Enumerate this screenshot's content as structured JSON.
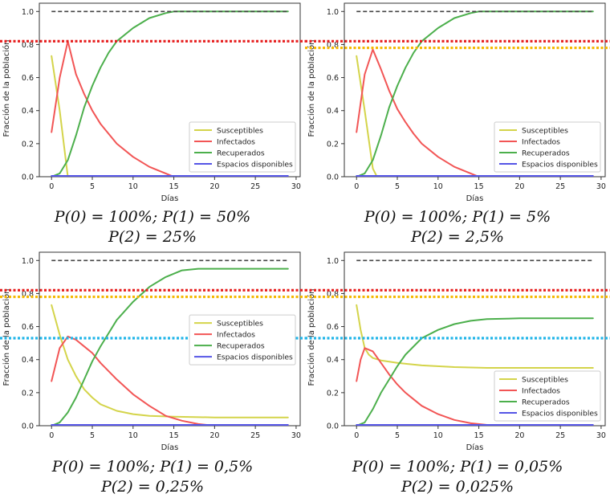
{
  "common": {
    "xlabel": "Días",
    "ylabel": "Fracción de la población",
    "xticks": [
      "0",
      "5",
      "10",
      "15",
      "20",
      "25",
      "30"
    ],
    "yticks": [
      "0.0",
      "0.2",
      "0.4",
      "0.6",
      "0.8",
      "1.0"
    ],
    "legend": [
      "Susceptibles",
      "Infectados",
      "Recuperados",
      "Espacios disponibles"
    ],
    "colors": {
      "susceptibles": "#d4d44a",
      "infectados": "#f25555",
      "recuperados": "#4caf4c",
      "espacios": "#5555e6",
      "total": "#444444",
      "red_threshold": "#e61e1e",
      "orange_threshold": "#f5b800",
      "cyan_threshold": "#1fb4e8"
    }
  },
  "panels": [
    {
      "caption_line1": "P(0) = 100%; P(1) = 50%",
      "caption_line2": "P(2) = 25%"
    },
    {
      "caption_line1": "P(0) = 100%; P(1) = 5%",
      "caption_line2": "P(2) = 2,5%"
    },
    {
      "caption_line1": "P(0) = 100%; P(1) = 0,5%",
      "caption_line2": "P(2) = 0,25%"
    },
    {
      "caption_line1": "P(0) = 100%; P(1) = 0,05%",
      "caption_line2": "P(2) = 0,025%"
    }
  ],
  "chart_data": [
    {
      "type": "line",
      "xlabel": "Días",
      "ylabel": "Fracción de la población",
      "xlim": [
        -1.5,
        30.5
      ],
      "ylim": [
        0,
        1.05
      ],
      "legend_position": "lower-right",
      "reference_lines": [
        {
          "y": 1.0,
          "color": "#444444",
          "style": "dashed"
        },
        {
          "y": 0.82,
          "color": "#e61e1e",
          "style": "dotted"
        }
      ],
      "series": [
        {
          "name": "Susceptibles",
          "x": [
            0,
            1,
            2
          ],
          "y": [
            0.73,
            0.4,
            0.0
          ]
        },
        {
          "name": "Infectados",
          "x": [
            0,
            1,
            2,
            3,
            4,
            5,
            6,
            7,
            8,
            10,
            12,
            14,
            15,
            29
          ],
          "y": [
            0.27,
            0.6,
            0.82,
            0.62,
            0.5,
            0.4,
            0.32,
            0.26,
            0.2,
            0.12,
            0.06,
            0.02,
            0.0,
            0.0
          ]
        },
        {
          "name": "Recuperados",
          "x": [
            0,
            1,
            2,
            3,
            4,
            5,
            6,
            7,
            8,
            10,
            12,
            14,
            15,
            29
          ],
          "y": [
            0.0,
            0.02,
            0.1,
            0.25,
            0.42,
            0.55,
            0.66,
            0.75,
            0.82,
            0.9,
            0.96,
            0.99,
            1.0,
            1.0
          ]
        },
        {
          "name": "Espacios disponibles",
          "x": [
            0,
            29
          ],
          "y": [
            0.005,
            0.005
          ]
        }
      ]
    },
    {
      "type": "line",
      "xlabel": "Días",
      "ylabel": "Fracción de la población",
      "xlim": [
        -1.5,
        30.5
      ],
      "ylim": [
        0,
        1.05
      ],
      "legend_position": "lower-right",
      "reference_lines": [
        {
          "y": 1.0,
          "color": "#444444",
          "style": "dashed"
        },
        {
          "y": 0.82,
          "color": "#e61e1e",
          "style": "dotted"
        },
        {
          "y": 0.78,
          "color": "#f5b800",
          "style": "dotted"
        }
      ],
      "series": [
        {
          "name": "Susceptibles",
          "x": [
            0,
            1,
            2,
            2.5
          ],
          "y": [
            0.73,
            0.4,
            0.05,
            0.0
          ]
        },
        {
          "name": "Infectados",
          "x": [
            0,
            1,
            2,
            3,
            4,
            5,
            6,
            7,
            8,
            10,
            12,
            14,
            15,
            29
          ],
          "y": [
            0.27,
            0.62,
            0.77,
            0.65,
            0.52,
            0.41,
            0.33,
            0.26,
            0.2,
            0.12,
            0.06,
            0.02,
            0.0,
            0.0
          ]
        },
        {
          "name": "Recuperados",
          "x": [
            0,
            1,
            2,
            3,
            4,
            5,
            6,
            7,
            8,
            10,
            12,
            14,
            15,
            29
          ],
          "y": [
            0.0,
            0.02,
            0.1,
            0.25,
            0.42,
            0.55,
            0.66,
            0.75,
            0.82,
            0.9,
            0.96,
            0.99,
            1.0,
            1.0
          ]
        },
        {
          "name": "Espacios disponibles",
          "x": [
            0,
            29
          ],
          "y": [
            0.005,
            0.005
          ]
        }
      ]
    },
    {
      "type": "line",
      "xlabel": "Días",
      "ylabel": "Fracción de la población",
      "xlim": [
        -1.5,
        30.5
      ],
      "ylim": [
        0,
        1.05
      ],
      "legend_position": "center-right",
      "reference_lines": [
        {
          "y": 1.0,
          "color": "#444444",
          "style": "dashed"
        },
        {
          "y": 0.82,
          "color": "#e61e1e",
          "style": "dotted"
        },
        {
          "y": 0.78,
          "color": "#f5b800",
          "style": "dotted"
        },
        {
          "y": 0.53,
          "color": "#1fb4e8",
          "style": "dotted"
        }
      ],
      "series": [
        {
          "name": "Susceptibles",
          "x": [
            0,
            1,
            2,
            3,
            4,
            5,
            6,
            8,
            10,
            12,
            15,
            20,
            25,
            29
          ],
          "y": [
            0.73,
            0.55,
            0.4,
            0.3,
            0.22,
            0.17,
            0.13,
            0.09,
            0.07,
            0.06,
            0.055,
            0.05,
            0.05,
            0.05
          ]
        },
        {
          "name": "Infectados",
          "x": [
            0,
            1,
            2,
            3,
            4,
            5,
            6,
            8,
            10,
            12,
            14,
            16,
            18,
            20,
            29
          ],
          "y": [
            0.27,
            0.47,
            0.54,
            0.52,
            0.48,
            0.44,
            0.38,
            0.28,
            0.19,
            0.12,
            0.06,
            0.03,
            0.01,
            0.0,
            0.0
          ]
        },
        {
          "name": "Recuperados",
          "x": [
            0,
            1,
            2,
            3,
            4,
            5,
            6,
            8,
            10,
            12,
            14,
            16,
            18,
            20,
            29
          ],
          "y": [
            0.0,
            0.02,
            0.08,
            0.17,
            0.28,
            0.39,
            0.48,
            0.64,
            0.75,
            0.84,
            0.9,
            0.94,
            0.95,
            0.95,
            0.95
          ]
        },
        {
          "name": "Espacios disponibles",
          "x": [
            0,
            29
          ],
          "y": [
            0.005,
            0.005
          ]
        }
      ]
    },
    {
      "type": "line",
      "xlabel": "Días",
      "ylabel": "Fracción de la población",
      "xlim": [
        -1.5,
        30.5
      ],
      "ylim": [
        0,
        1.05
      ],
      "legend_position": "lower-right",
      "reference_lines": [
        {
          "y": 1.0,
          "color": "#444444",
          "style": "dashed"
        },
        {
          "y": 0.82,
          "color": "#e61e1e",
          "style": "dotted"
        },
        {
          "y": 0.78,
          "color": "#f5b800",
          "style": "dotted"
        },
        {
          "y": 0.53,
          "color": "#1fb4e8",
          "style": "dotted"
        }
      ],
      "series": [
        {
          "name": "Susceptibles",
          "x": [
            0,
            0.5,
            1,
            1.5,
            2,
            3,
            5,
            8,
            12,
            16,
            20,
            29
          ],
          "y": [
            0.73,
            0.58,
            0.47,
            0.43,
            0.41,
            0.395,
            0.38,
            0.365,
            0.355,
            0.35,
            0.35,
            0.35
          ]
        },
        {
          "name": "Infectados",
          "x": [
            0,
            0.5,
            1,
            2,
            3,
            4,
            5,
            6,
            8,
            10,
            12,
            14,
            16,
            18,
            29
          ],
          "y": [
            0.27,
            0.4,
            0.47,
            0.45,
            0.38,
            0.31,
            0.25,
            0.2,
            0.12,
            0.07,
            0.035,
            0.015,
            0.005,
            0.0,
            0.0
          ]
        },
        {
          "name": "Recuperados",
          "x": [
            0,
            1,
            2,
            3,
            4,
            5,
            6,
            8,
            10,
            12,
            14,
            16,
            20,
            29
          ],
          "y": [
            0.0,
            0.02,
            0.1,
            0.2,
            0.28,
            0.36,
            0.43,
            0.53,
            0.58,
            0.615,
            0.635,
            0.645,
            0.65,
            0.65
          ]
        },
        {
          "name": "Espacios disponibles",
          "x": [
            0,
            29
          ],
          "y": [
            0.005,
            0.005
          ]
        }
      ]
    }
  ]
}
